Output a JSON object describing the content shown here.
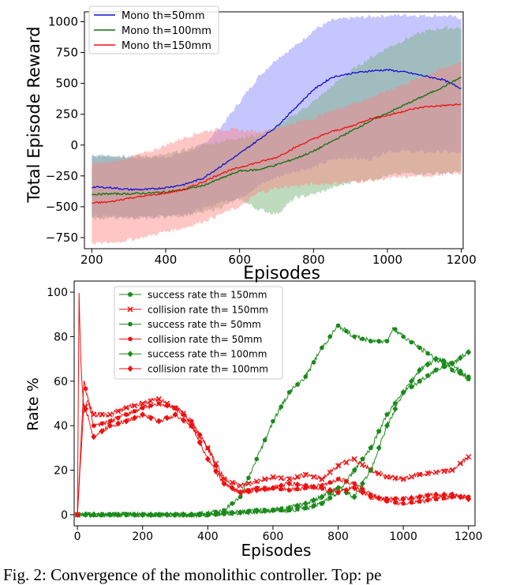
{
  "chart_data": [
    {
      "type": "line",
      "title": "",
      "xlabel": "Episodes",
      "ylabel": "Total Episode Reward",
      "xlim": [
        180,
        1205
      ],
      "ylim": [
        -840,
        1080
      ],
      "xticks": [
        200,
        400,
        600,
        800,
        1000,
        1200
      ],
      "yticks": [
        -750,
        -500,
        -250,
        0,
        250,
        500,
        750,
        1000
      ],
      "ytick_labels": [
        "−750",
        "−500",
        "−250",
        "0",
        "250",
        "500",
        "750",
        "1000"
      ],
      "legend_position": "top-left",
      "grid": false,
      "series": [
        {
          "name": "Mono th=50mm",
          "color": "#1010d0",
          "band_color": "#8080ff",
          "x": [
            200,
            250,
            300,
            350,
            400,
            450,
            500,
            550,
            600,
            650,
            700,
            750,
            800,
            850,
            900,
            950,
            1000,
            1050,
            1100,
            1150,
            1200
          ],
          "y": [
            -340,
            -345,
            -360,
            -360,
            -345,
            -320,
            -270,
            -170,
            -70,
            40,
            150,
            300,
            450,
            550,
            580,
            600,
            610,
            590,
            560,
            530,
            460
          ],
          "upper": [
            -80,
            -90,
            -100,
            -100,
            -95,
            -60,
            0,
            150,
            350,
            550,
            700,
            800,
            930,
            1010,
            1030,
            1040,
            1050,
            1055,
            1050,
            1050,
            1030
          ],
          "lower": [
            -580,
            -580,
            -590,
            -590,
            -570,
            -560,
            -520,
            -460,
            -430,
            -330,
            -260,
            -210,
            -180,
            -120,
            -100,
            -120,
            -50,
            -50,
            -60,
            -50,
            -70
          ]
        },
        {
          "name": "Mono th=100mm",
          "color": "#107010",
          "band_color": "#70b070",
          "x": [
            200,
            250,
            300,
            350,
            400,
            450,
            500,
            550,
            600,
            650,
            700,
            750,
            800,
            850,
            900,
            950,
            1000,
            1050,
            1100,
            1150,
            1200
          ],
          "y": [
            -400,
            -395,
            -395,
            -390,
            -380,
            -360,
            -330,
            -270,
            -210,
            -200,
            -160,
            -110,
            -50,
            30,
            110,
            190,
            260,
            330,
            400,
            470,
            550
          ],
          "upper": [
            -100,
            -80,
            -90,
            -90,
            -80,
            -40,
            0,
            30,
            60,
            80,
            150,
            250,
            350,
            480,
            600,
            700,
            790,
            860,
            920,
            950,
            950
          ],
          "lower": [
            -600,
            -590,
            -590,
            -590,
            -580,
            -570,
            -550,
            -500,
            -440,
            -520,
            -560,
            -430,
            -400,
            -350,
            -300,
            -280,
            -250,
            -230,
            -230,
            -230,
            -220
          ]
        },
        {
          "name": "Mono th=150mm",
          "color": "#f01010",
          "band_color": "#ff8080",
          "x": [
            200,
            250,
            300,
            350,
            400,
            450,
            500,
            550,
            600,
            650,
            700,
            750,
            800,
            850,
            900,
            950,
            1000,
            1050,
            1100,
            1150,
            1200
          ],
          "y": [
            -470,
            -460,
            -430,
            -410,
            -390,
            -360,
            -300,
            -230,
            -180,
            -140,
            -100,
            -20,
            50,
            110,
            150,
            210,
            240,
            280,
            310,
            320,
            330
          ],
          "upper": [
            -150,
            -140,
            -100,
            -60,
            0,
            60,
            110,
            130,
            120,
            110,
            140,
            180,
            220,
            280,
            330,
            380,
            440,
            500,
            560,
            620,
            680
          ],
          "lower": [
            -800,
            -790,
            -770,
            -740,
            -700,
            -670,
            -620,
            -560,
            -500,
            -390,
            -350,
            -330,
            -320,
            -310,
            -300,
            -290,
            -270,
            -260,
            -250,
            -240,
            -230
          ]
        }
      ]
    },
    {
      "type": "line",
      "title": "",
      "xlabel": "Episodes",
      "ylabel": "Rate %",
      "xlim": [
        -10,
        1220
      ],
      "ylim": [
        -5,
        105
      ],
      "xticks": [
        0,
        200,
        400,
        600,
        800,
        1000,
        1200
      ],
      "yticks": [
        0,
        20,
        40,
        60,
        80,
        100
      ],
      "legend_position": "top-left",
      "grid": false,
      "series": [
        {
          "name": "success rate th= 150mm",
          "color": "#1a8a1a",
          "marker": "pentagon",
          "x": [
            0,
            20,
            50,
            100,
            150,
            200,
            250,
            300,
            350,
            400,
            450,
            500,
            550,
            600,
            650,
            700,
            750,
            800,
            850,
            900,
            950,
            1000,
            1050,
            1100,
            1150,
            1200
          ],
          "y": [
            0,
            0,
            0,
            0,
            0,
            0,
            0,
            0,
            0,
            0,
            0.5,
            1,
            2,
            2,
            2,
            3,
            5,
            10,
            20,
            30,
            45,
            55,
            60,
            65,
            68,
            61
          ]
        },
        {
          "name": "collision rate th= 150mm",
          "color": "#ee1111",
          "marker": "x",
          "x": [
            0,
            5,
            10,
            20,
            30,
            50,
            100,
            150,
            200,
            250,
            300,
            330,
            350,
            400,
            450,
            500,
            550,
            600,
            650,
            700,
            750,
            800,
            850,
            900,
            950,
            1000,
            1050,
            1100,
            1150,
            1200
          ],
          "y": [
            0,
            100,
            70,
            45,
            52,
            45,
            45,
            48,
            50,
            52,
            48,
            45,
            40,
            30,
            16,
            13,
            15,
            17,
            16,
            18,
            16,
            22,
            25,
            20,
            17,
            16,
            18,
            19,
            20,
            26
          ]
        },
        {
          "name": "success rate th= 50mm",
          "color": "#1a8a1a",
          "marker": "circle",
          "x": [
            0,
            100,
            200,
            300,
            400,
            450,
            500,
            550,
            600,
            650,
            700,
            750,
            800,
            850,
            900,
            950,
            970,
            1000,
            1050,
            1100,
            1150,
            1200
          ],
          "y": [
            0,
            0,
            0,
            0,
            0.5,
            2,
            8,
            25,
            42,
            55,
            62,
            75,
            85,
            80,
            78,
            78,
            84,
            80,
            75,
            70,
            65,
            62
          ]
        },
        {
          "name": "collision rate th= 50mm",
          "color": "#ee1111",
          "marker": "circle",
          "x": [
            0,
            20,
            50,
            100,
            150,
            200,
            250,
            300,
            350,
            400,
            450,
            500,
            550,
            600,
            650,
            700,
            750,
            800,
            850,
            900,
            950,
            1000,
            1050,
            1100,
            1150,
            1200
          ],
          "y": [
            0,
            60,
            40,
            42,
            45,
            48,
            50,
            48,
            42,
            30,
            14,
            10,
            12,
            12,
            11,
            12,
            13,
            16,
            14,
            9,
            6,
            5,
            6,
            7,
            8,
            8
          ]
        },
        {
          "name": "success rate th= 100mm",
          "color": "#1a8a1a",
          "marker": "diamond",
          "x": [
            0,
            100,
            200,
            300,
            400,
            450,
            500,
            550,
            600,
            650,
            700,
            750,
            800,
            850,
            900,
            950,
            1000,
            1050,
            1100,
            1150,
            1200
          ],
          "y": [
            0,
            0,
            0,
            0,
            0,
            0.5,
            1,
            1.5,
            2,
            3,
            5,
            8,
            12,
            8,
            20,
            40,
            55,
            65,
            70,
            68,
            73
          ]
        },
        {
          "name": "collision rate th= 100mm",
          "color": "#ee1111",
          "marker": "diamond",
          "x": [
            0,
            20,
            50,
            100,
            150,
            200,
            250,
            300,
            350,
            400,
            450,
            500,
            550,
            600,
            650,
            700,
            750,
            800,
            850,
            900,
            950,
            1000,
            1050,
            1100,
            1150,
            1200
          ],
          "y": [
            0,
            50,
            35,
            40,
            42,
            45,
            42,
            45,
            40,
            25,
            14,
            10,
            11,
            12,
            14,
            13,
            12,
            10,
            12,
            8,
            7,
            7,
            8,
            9,
            9,
            7
          ]
        }
      ]
    }
  ],
  "caption": "Fig. 2: Convergence of the monolithic controller. Top: pe"
}
